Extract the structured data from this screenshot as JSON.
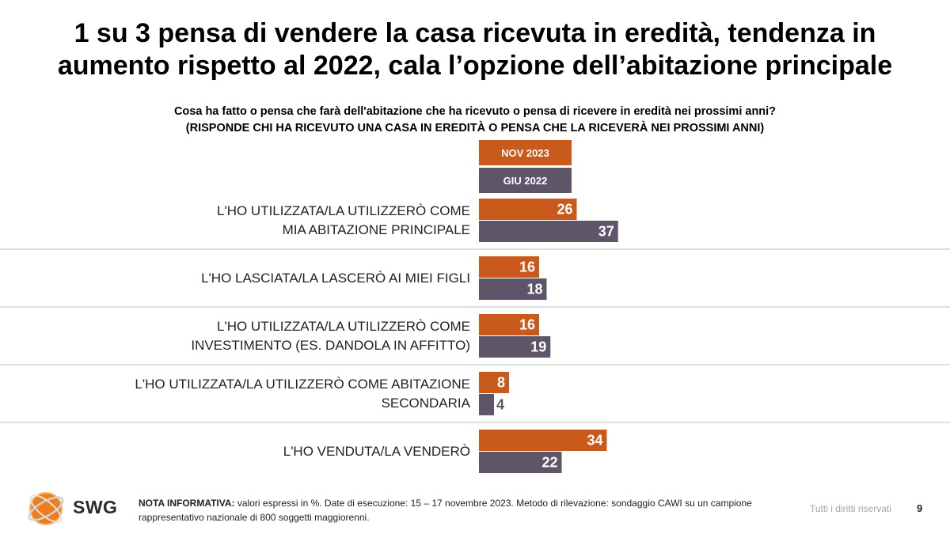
{
  "title": {
    "line1": "1 su 3 pensa di vendere la casa ricevuta in eredità, tendenza in",
    "line2": "aumento rispetto al 2022, cala l’opzione dell’abitazione principale"
  },
  "question": {
    "line1": "Cosa ha fatto o pensa che farà dell'abitazione che ha ricevuto o pensa di ricevere in eredità nei prossimi anni?",
    "line2": "(RISPONDE CHI HA RICEVUTO UNA CASA IN EREDITÀ O PENSA CHE LA RICEVERÀ NEI PROSSIMI ANNI)"
  },
  "colors": {
    "nov2023": "#c95a1b",
    "giu2022": "#5e5569",
    "separator": "#bfbfbf"
  },
  "chart_data": {
    "type": "bar",
    "orientation": "horizontal",
    "categories": [
      [
        "L'HO UTILIZZATA/LA UTILIZZERÒ COME",
        "MIA ABITAZIONE PRINCIPALE"
      ],
      [
        "L'HO LASCIATA/LA LASCERÒ AI MIEI FIGLI"
      ],
      [
        "L'HO UTILIZZATA/LA UTILIZZERÒ COME",
        "INVESTIMENTO (ES. DANDOLA IN AFFITTO)"
      ],
      [
        "L'HO UTILIZZATA/LA UTILIZZERÒ COME ABITAZIONE",
        "SECONDARIA"
      ],
      [
        "L'HO VENDUTA/LA VENDERÒ"
      ]
    ],
    "series": [
      {
        "name": "NOV 2023",
        "values": [
          26,
          16,
          16,
          8,
          34
        ]
      },
      {
        "name": "GIU 2022",
        "values": [
          37,
          18,
          19,
          4,
          22
        ]
      }
    ],
    "unit": "%",
    "xlim": [
      0,
      100
    ],
    "legend": "top"
  },
  "footer": {
    "logo_text": "SWG",
    "note_label": "NOTA INFORMATIVA:",
    "note_text": " valori espressi in %. Date di esecuzione: 15 – 17 novembre 2023. Metodo di rilevazione: sondaggio CAWI su un campione rappresentativo nazionale di 800 soggetti maggiorenni.",
    "rights": "Tutti i diritti riservati",
    "page_number": "9"
  }
}
